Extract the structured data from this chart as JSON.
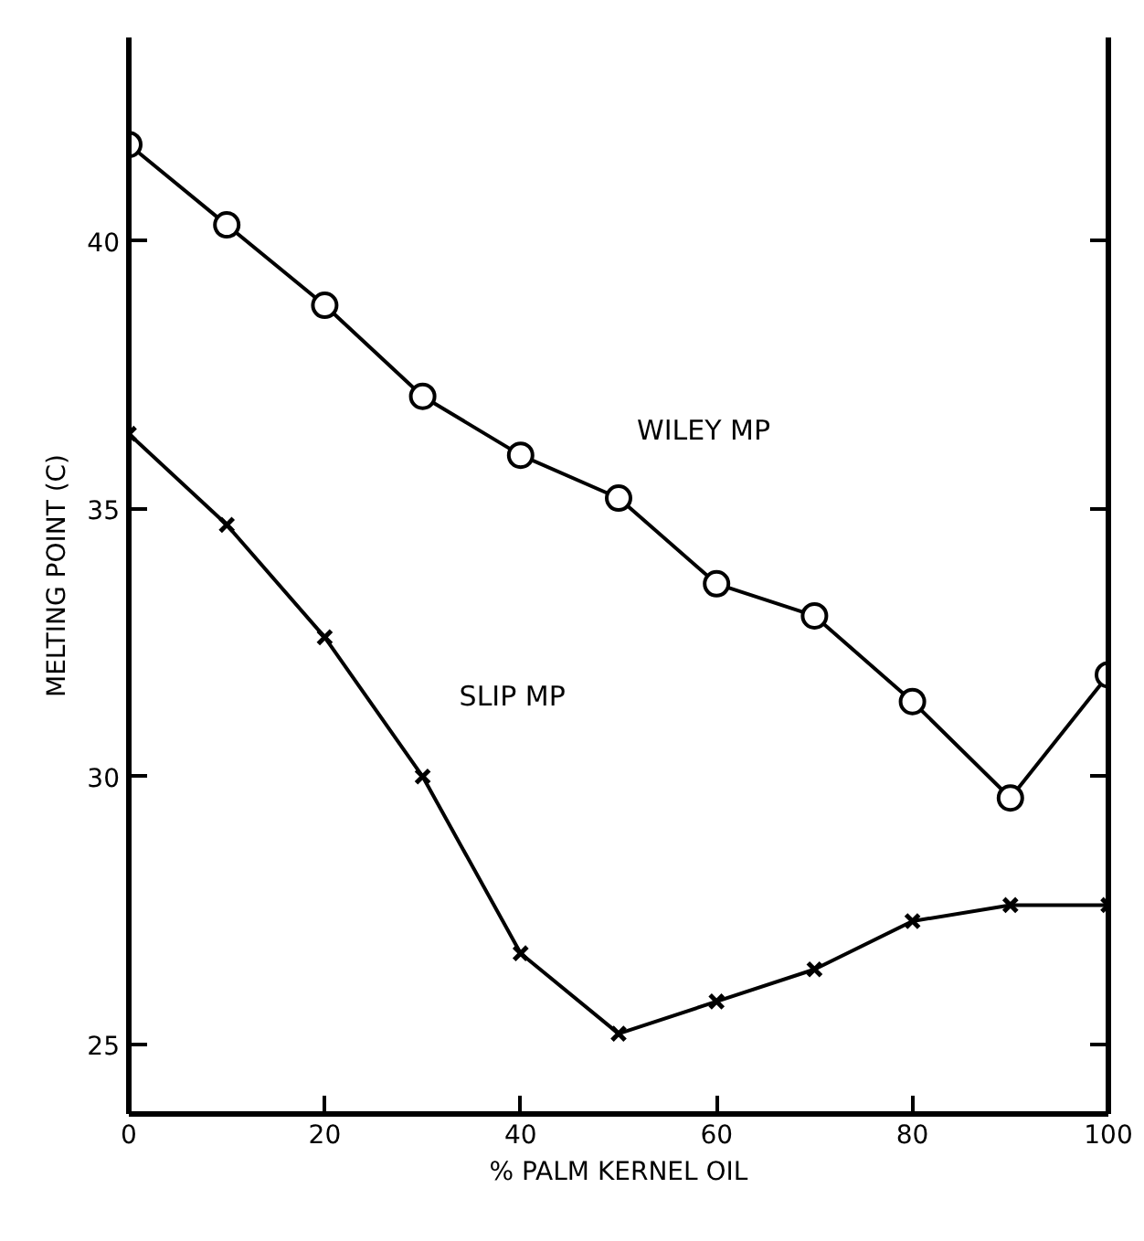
{
  "chart_data": {
    "type": "line",
    "xlabel": "% PALM KERNEL OIL",
    "ylabel": "MELTING POINT (C)",
    "x": [
      0,
      10,
      20,
      30,
      40,
      50,
      60,
      70,
      80,
      90,
      100
    ],
    "xlim": [
      0,
      100
    ],
    "xticks": [
      0,
      20,
      40,
      60,
      80,
      100
    ],
    "ylim": [
      23.7,
      43.8
    ],
    "yticks": [
      25,
      30,
      35,
      40
    ],
    "grid": false,
    "line_style": "solid",
    "series": [
      {
        "name": "WILEY MP",
        "color": "#000000",
        "marker": "circle",
        "values": [
          41.8,
          40.3,
          38.8,
          37.1,
          36.0,
          35.2,
          33.6,
          33.0,
          31.4,
          29.6,
          31.9
        ]
      },
      {
        "name": "SLIP MP",
        "color": "#000000",
        "marker": "cross",
        "values": [
          36.4,
          34.7,
          32.6,
          30.0,
          26.7,
          25.2,
          25.8,
          26.4,
          27.3,
          27.6,
          27.6
        ]
      }
    ]
  }
}
